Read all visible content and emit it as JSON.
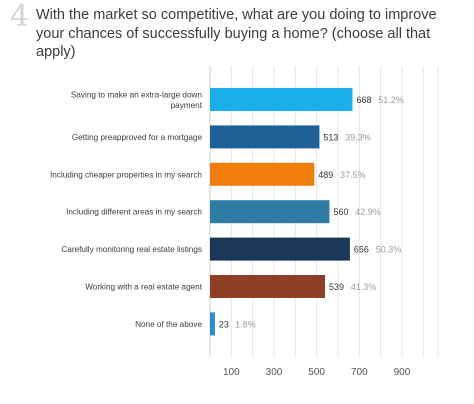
{
  "question": {
    "number": "4",
    "title": "With the market so competitive, what are you doing to improve your chances of successfully buying a home? (choose all that apply)"
  },
  "chart_data": {
    "type": "bar",
    "orientation": "horizontal",
    "title": "",
    "xlabel": "",
    "ylabel": "",
    "xlim": [
      0,
      1000
    ],
    "xticks": [
      100,
      300,
      500,
      700,
      900
    ],
    "grid": true,
    "categories": [
      "Saving to make an extra-large down payment",
      "Getting preapproved for a mortgage",
      "Including cheaper properties in my search",
      "Including different areas in my search",
      "Carefully monitoring real estate listings",
      "Working with a real estate agent",
      "None of the above"
    ],
    "category_lines": [
      [
        "Saving to make an extra-large down",
        "payment"
      ],
      [
        "Getting preapproved for a mortgage"
      ],
      [
        "Including cheaper properties in my search"
      ],
      [
        "Including different areas in my search"
      ],
      [
        "Carefully monitoring real estate listings"
      ],
      [
        "Working with a real estate agent"
      ],
      [
        "None of the above"
      ]
    ],
    "values": [
      668,
      513,
      489,
      560,
      656,
      539,
      23
    ],
    "percent_labels": [
      "51.2%",
      "39.3%",
      "37.5%",
      "42.9%",
      "50.3%",
      "41.3%",
      "1.8%"
    ],
    "colors": [
      "#1aaeeb",
      "#1f6096",
      "#f07d0c",
      "#2e7ca3",
      "#1b3859",
      "#8c3f23",
      "#2e8bc5"
    ]
  }
}
